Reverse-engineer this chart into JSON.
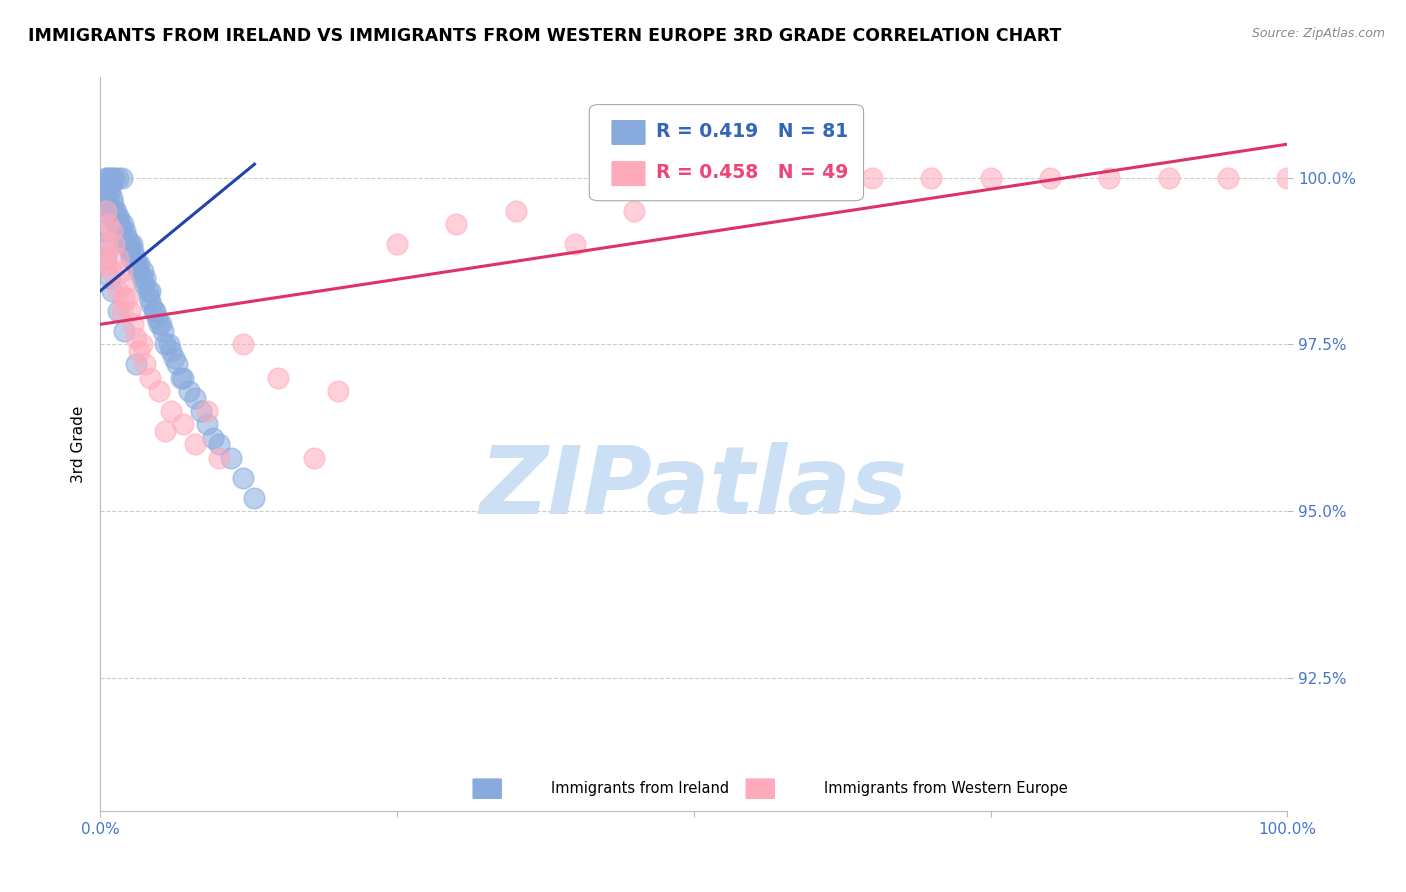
{
  "title": "IMMIGRANTS FROM IRELAND VS IMMIGRANTS FROM WESTERN EUROPE 3RD GRADE CORRELATION CHART",
  "source": "Source: ZipAtlas.com",
  "ylabel": "3rd Grade",
  "ylabel_right_tick_labels": [
    "100.0%",
    "97.5%",
    "95.0%",
    "92.5%"
  ],
  "yticks": [
    100.0,
    97.5,
    95.0,
    92.5
  ],
  "xlim": [
    0,
    100
  ],
  "ylim": [
    90.5,
    101.5
  ],
  "legend_items": [
    {
      "label": "Immigrants from Ireland",
      "color": "#88aadd"
    },
    {
      "label": "Immigrants from Western Europe",
      "color": "#ffaabb"
    }
  ],
  "legend_r_n": [
    {
      "R": 0.419,
      "N": 81,
      "color": "#3366bb"
    },
    {
      "R": 0.458,
      "N": 49,
      "color": "#ee4477"
    }
  ],
  "blue_scatter_x": [
    0.2,
    0.3,
    0.4,
    0.5,
    0.5,
    0.6,
    0.7,
    0.7,
    0.8,
    0.8,
    0.9,
    1.0,
    1.0,
    1.0,
    1.1,
    1.1,
    1.2,
    1.2,
    1.3,
    1.3,
    1.4,
    1.5,
    1.5,
    1.6,
    1.7,
    1.8,
    1.8,
    1.9,
    2.0,
    2.0,
    2.1,
    2.2,
    2.3,
    2.4,
    2.5,
    2.5,
    2.6,
    2.7,
    2.8,
    2.9,
    3.0,
    3.1,
    3.2,
    3.3,
    3.5,
    3.6,
    3.7,
    3.8,
    4.0,
    4.1,
    4.2,
    4.3,
    4.5,
    4.6,
    4.8,
    5.0,
    5.1,
    5.3,
    5.5,
    5.8,
    6.0,
    6.2,
    6.5,
    6.8,
    7.0,
    7.5,
    8.0,
    8.5,
    9.0,
    9.5,
    10.0,
    11.0,
    12.0,
    13.0,
    0.3,
    0.5,
    0.8,
    1.0,
    1.5,
    2.0,
    3.0
  ],
  "blue_scatter_y": [
    99.2,
    99.5,
    99.6,
    100.0,
    99.8,
    100.0,
    99.7,
    99.9,
    100.0,
    99.8,
    99.9,
    100.0,
    99.7,
    99.5,
    99.6,
    99.4,
    100.0,
    99.5,
    99.5,
    99.3,
    99.4,
    100.0,
    99.2,
    99.4,
    99.3,
    100.0,
    99.2,
    99.3,
    99.1,
    99.0,
    99.2,
    99.0,
    99.1,
    99.0,
    99.0,
    98.9,
    98.8,
    99.0,
    98.9,
    98.8,
    98.7,
    98.7,
    98.6,
    98.7,
    98.5,
    98.6,
    98.4,
    98.5,
    98.3,
    98.2,
    98.3,
    98.1,
    98.0,
    98.0,
    97.9,
    97.8,
    97.8,
    97.7,
    97.5,
    97.5,
    97.4,
    97.3,
    97.2,
    97.0,
    97.0,
    96.8,
    96.7,
    96.5,
    96.3,
    96.1,
    96.0,
    95.8,
    95.5,
    95.2,
    99.0,
    98.8,
    98.5,
    98.3,
    98.0,
    97.7,
    97.2
  ],
  "pink_scatter_x": [
    0.5,
    0.7,
    1.0,
    1.2,
    1.5,
    1.8,
    2.0,
    2.3,
    2.5,
    2.8,
    3.0,
    3.3,
    3.8,
    4.2,
    5.0,
    6.0,
    7.0,
    8.0,
    10.0,
    12.0,
    15.0,
    20.0,
    25.0,
    30.0,
    35.0,
    40.0,
    45.0,
    50.0,
    55.0,
    60.0,
    65.0,
    70.0,
    75.0,
    80.0,
    85.0,
    90.0,
    95.0,
    100.0,
    0.3,
    0.6,
    0.9,
    1.5,
    2.0,
    3.5,
    5.5,
    0.4,
    1.8,
    9.0,
    18.0
  ],
  "pink_scatter_y": [
    99.5,
    99.3,
    99.2,
    99.0,
    98.8,
    98.6,
    98.4,
    98.2,
    98.0,
    97.8,
    97.6,
    97.4,
    97.2,
    97.0,
    96.8,
    96.5,
    96.3,
    96.0,
    95.8,
    97.5,
    97.0,
    96.8,
    99.0,
    99.3,
    99.5,
    99.0,
    99.5,
    100.0,
    100.0,
    100.0,
    100.0,
    100.0,
    100.0,
    100.0,
    100.0,
    100.0,
    100.0,
    100.0,
    98.8,
    99.0,
    98.6,
    98.3,
    98.2,
    97.5,
    96.2,
    98.7,
    98.0,
    96.5,
    95.8
  ],
  "blue_line_x": [
    0.0,
    13.0
  ],
  "blue_line_y": [
    98.3,
    100.2
  ],
  "pink_line_x": [
    0.0,
    100.0
  ],
  "pink_line_y": [
    97.8,
    100.5
  ],
  "blue_color": "#88aadd",
  "pink_color": "#ffaabb",
  "blue_line_color": "#2244aa",
  "pink_line_color": "#dd3366",
  "grid_color": "#cccccc",
  "tick_label_color": "#4477cc",
  "watermark_text": "ZIPatlas",
  "watermark_color": "#cce0f5"
}
